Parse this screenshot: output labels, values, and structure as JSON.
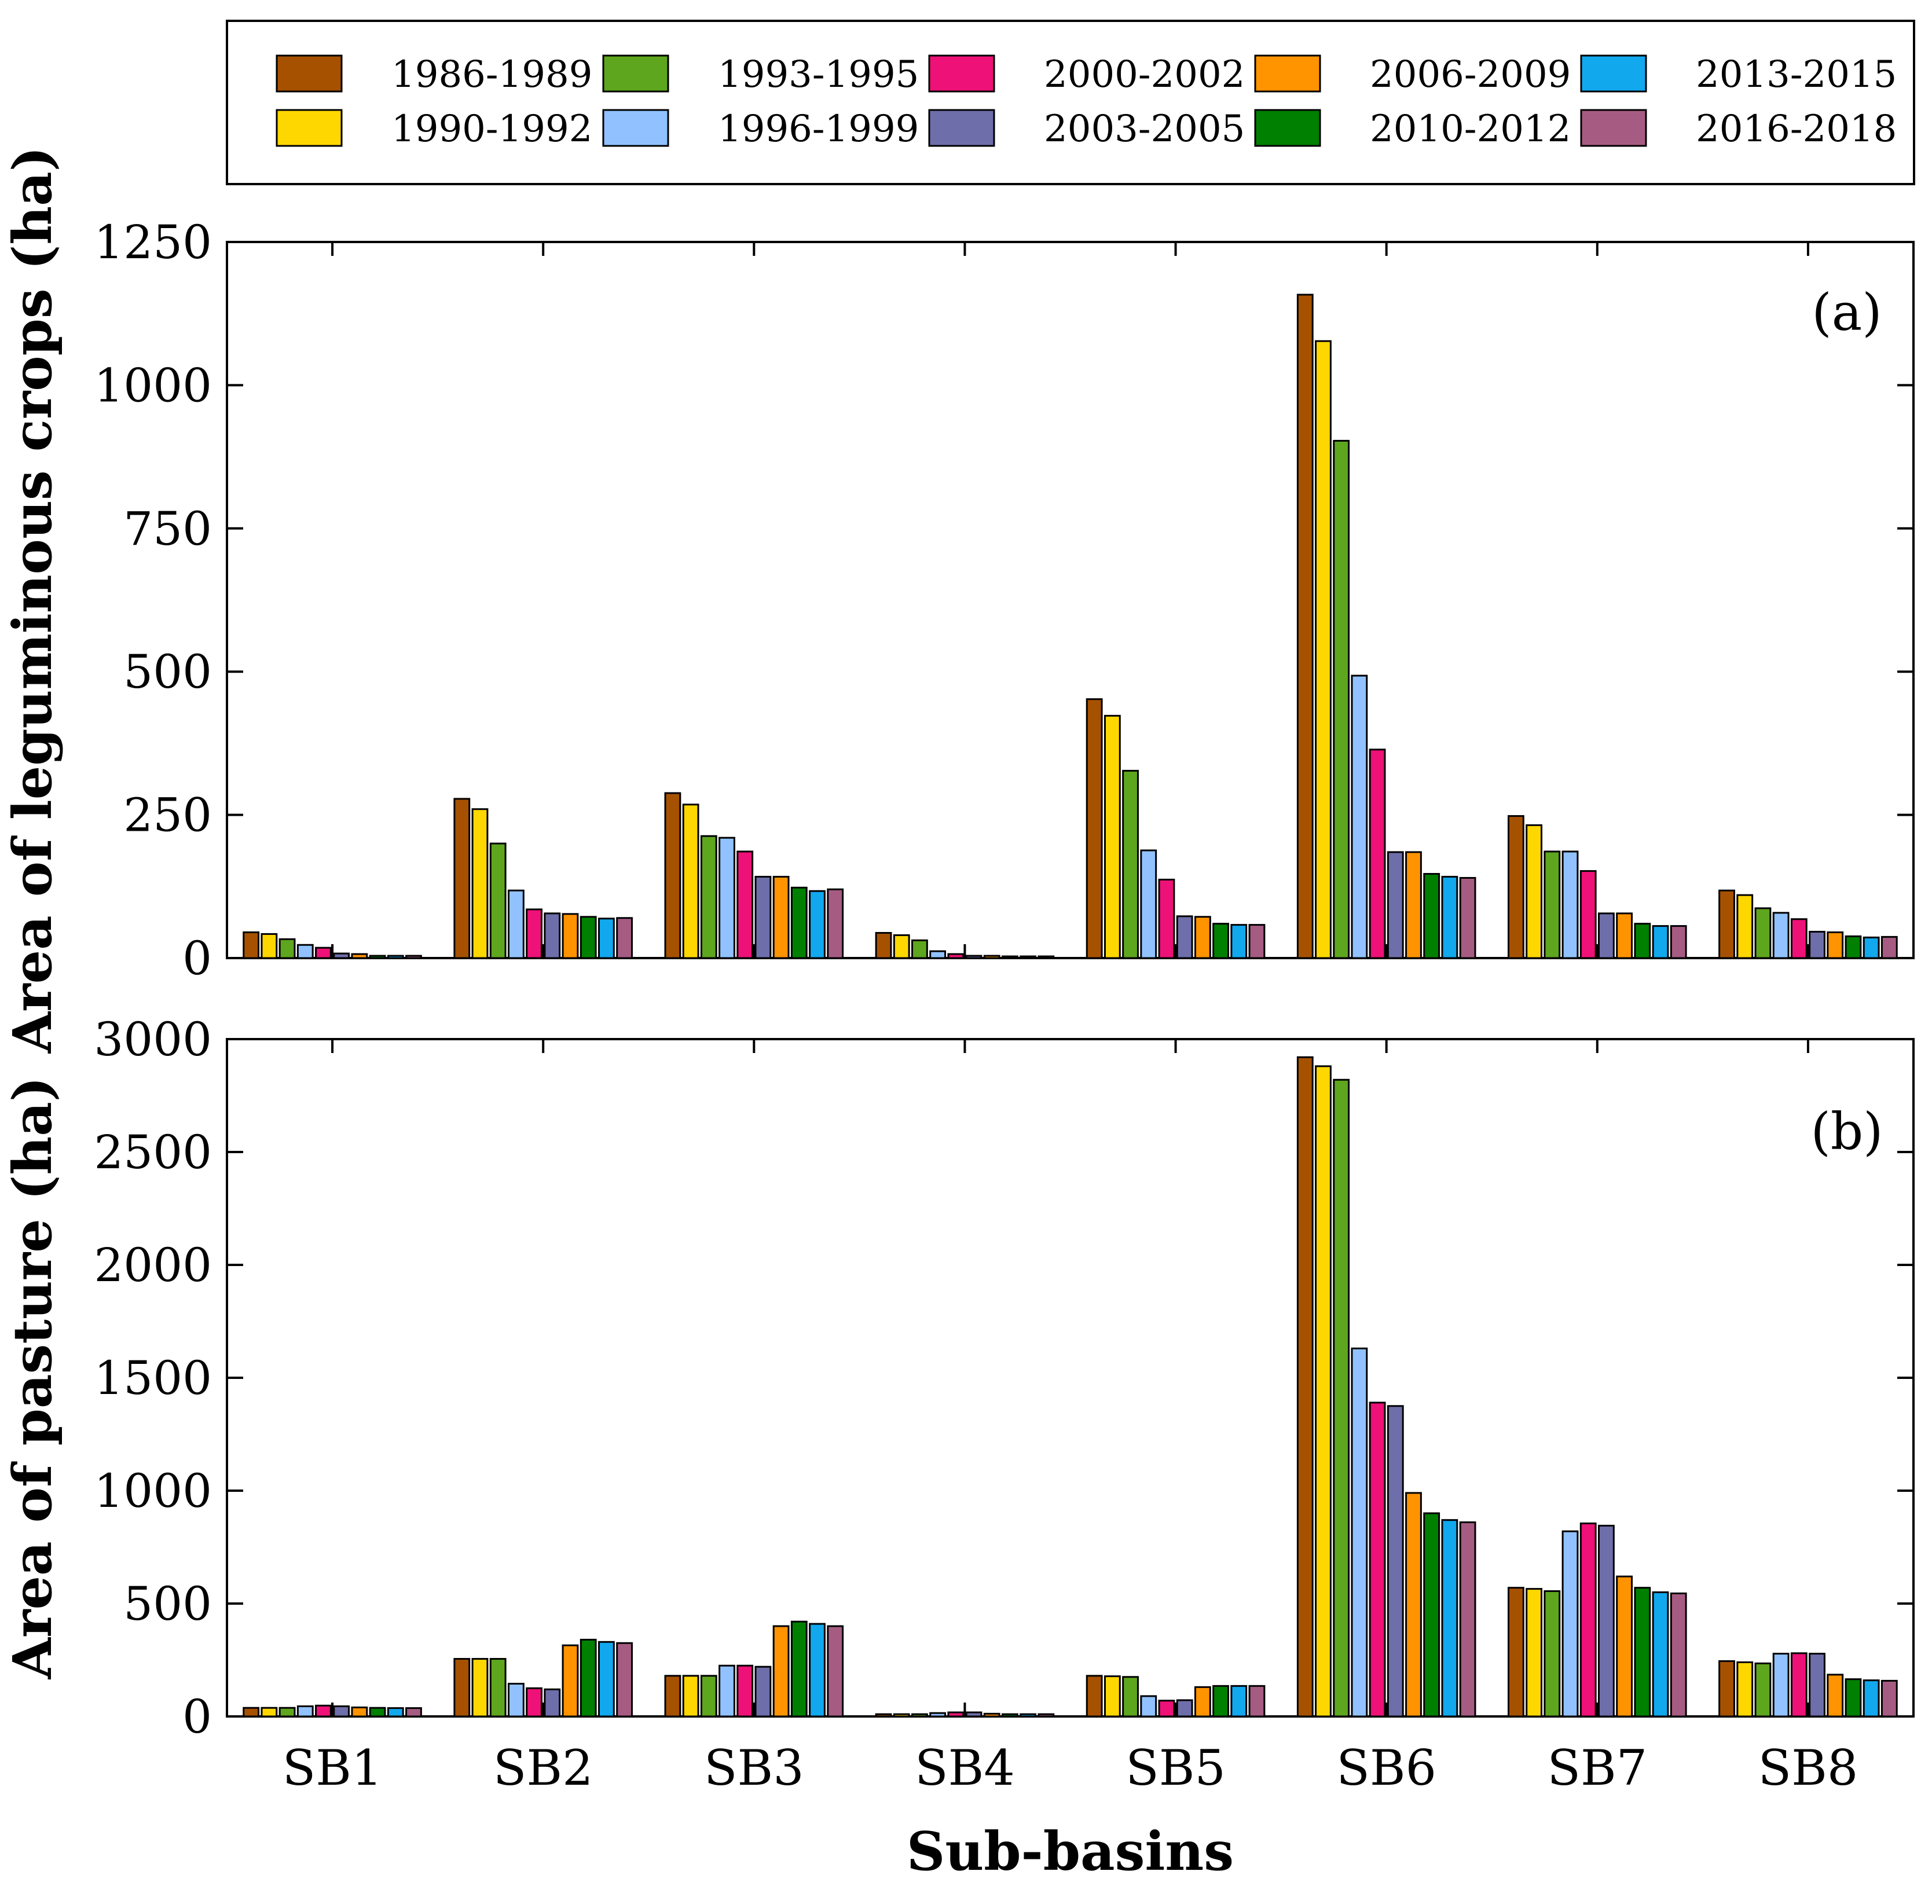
{
  "chart_data": [
    {
      "type": "bar",
      "panel_tag": "(a)",
      "ylabel": "Area of leguminous crops (ha)",
      "xlabel": "",
      "ylim": [
        0,
        1250
      ],
      "yticks": [
        0,
        250,
        500,
        750,
        1000,
        1250
      ],
      "grid": false,
      "categories": [
        "SB1",
        "SB2",
        "SB3",
        "SB4",
        "SB5",
        "SB6",
        "SB7",
        "SB8"
      ],
      "series": [
        {
          "name": "1986-1989",
          "color": "#A65100",
          "values": [
            45,
            278,
            288,
            44,
            452,
            1158,
            248,
            118
          ]
        },
        {
          "name": "1990-1992",
          "color": "#FFD700",
          "values": [
            42,
            260,
            268,
            40,
            423,
            1077,
            232,
            110
          ]
        },
        {
          "name": "1993-1995",
          "color": "#5EA61E",
          "values": [
            33,
            200,
            213,
            31,
            327,
            903,
            186,
            87
          ]
        },
        {
          "name": "1996-1999",
          "color": "#91C2FF",
          "values": [
            23,
            118,
            210,
            12,
            188,
            493,
            186,
            79
          ]
        },
        {
          "name": "2000-2002",
          "color": "#EE1177",
          "values": [
            18,
            85,
            186,
            7,
            137,
            364,
            152,
            68
          ]
        },
        {
          "name": "2003-2005",
          "color": "#6E6EAA",
          "values": [
            8,
            78,
            142,
            4,
            73,
            185,
            78,
            46
          ]
        },
        {
          "name": "2006-2009",
          "color": "#FF9300",
          "values": [
            7,
            77,
            142,
            4,
            72,
            185,
            78,
            45
          ]
        },
        {
          "name": "2010-2012",
          "color": "#008000",
          "values": [
            4,
            72,
            123,
            3,
            60,
            147,
            60,
            38
          ]
        },
        {
          "name": "2013-2015",
          "color": "#11A8EE",
          "values": [
            4,
            69,
            117,
            3,
            58,
            142,
            56,
            36
          ]
        },
        {
          "name": "2016-2018",
          "color": "#A65C82",
          "values": [
            4,
            70,
            120,
            3,
            58,
            140,
            56,
            37
          ]
        }
      ]
    },
    {
      "type": "bar",
      "panel_tag": "(b)",
      "ylabel": "Area of pasture (ha)",
      "xlabel": "Sub-basins",
      "ylim": [
        0,
        3000
      ],
      "yticks": [
        0,
        500,
        1000,
        1500,
        2000,
        2500,
        3000
      ],
      "grid": false,
      "categories": [
        "SB1",
        "SB2",
        "SB3",
        "SB4",
        "SB5",
        "SB6",
        "SB7",
        "SB8"
      ],
      "series": [
        {
          "name": "1986-1989",
          "color": "#A65100",
          "values": [
            38,
            255,
            180,
            10,
            180,
            2920,
            570,
            245
          ]
        },
        {
          "name": "1990-1992",
          "color": "#FFD700",
          "values": [
            38,
            255,
            180,
            10,
            178,
            2880,
            565,
            240
          ]
        },
        {
          "name": "1993-1995",
          "color": "#5EA61E",
          "values": [
            38,
            255,
            180,
            10,
            175,
            2820,
            555,
            235
          ]
        },
        {
          "name": "1996-1999",
          "color": "#91C2FF",
          "values": [
            45,
            145,
            225,
            15,
            90,
            1630,
            820,
            278
          ]
        },
        {
          "name": "2000-2002",
          "color": "#EE1177",
          "values": [
            48,
            125,
            225,
            18,
            70,
            1390,
            855,
            280
          ]
        },
        {
          "name": "2003-2005",
          "color": "#6E6EAA",
          "values": [
            45,
            120,
            220,
            18,
            72,
            1375,
            845,
            278
          ]
        },
        {
          "name": "2006-2009",
          "color": "#FF9300",
          "values": [
            40,
            315,
            400,
            12,
            130,
            990,
            620,
            185
          ]
        },
        {
          "name": "2010-2012",
          "color": "#008000",
          "values": [
            38,
            340,
            420,
            10,
            135,
            900,
            570,
            165
          ]
        },
        {
          "name": "2013-2015",
          "color": "#11A8EE",
          "values": [
            37,
            330,
            410,
            10,
            135,
            870,
            550,
            160
          ]
        },
        {
          "name": "2016-2018",
          "color": "#A65C82",
          "values": [
            37,
            325,
            400,
            10,
            135,
            860,
            545,
            158
          ]
        }
      ]
    }
  ]
}
